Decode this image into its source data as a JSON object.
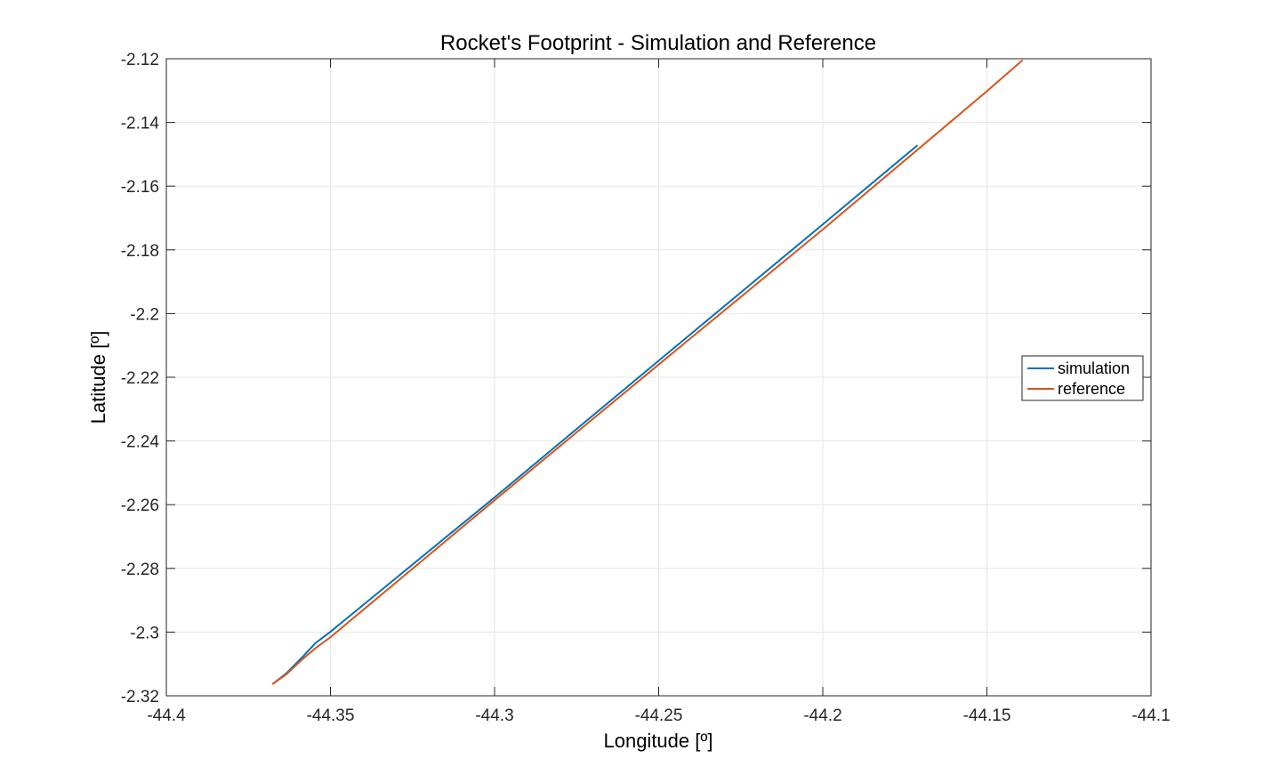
{
  "chart_data": {
    "type": "line",
    "title": "Rocket's Footprint - Simulation and Reference",
    "xlabel": "Longitude [º]",
    "ylabel": "Latitude [º]",
    "xlim": [
      -44.4,
      -44.1
    ],
    "ylim": [
      -2.32,
      -2.12
    ],
    "xticks": [
      -44.4,
      -44.35,
      -44.3,
      -44.25,
      -44.2,
      -44.15,
      -44.1
    ],
    "xtick_labels": [
      "-44.4",
      "-44.35",
      "-44.3",
      "-44.25",
      "-44.2",
      "-44.15",
      "-44.1"
    ],
    "yticks": [
      -2.12,
      -2.14,
      -2.16,
      -2.18,
      -2.2,
      -2.22,
      -2.24,
      -2.26,
      -2.28,
      -2.3,
      -2.32
    ],
    "ytick_labels": [
      "-2.12",
      "-2.14",
      "-2.16",
      "-2.18",
      "-2.2",
      "-2.22",
      "-2.24",
      "-2.26",
      "-2.28",
      "-2.3",
      "-2.32"
    ],
    "grid": true,
    "legend_position": "right",
    "series": [
      {
        "name": "simulation",
        "color": "#0072BD",
        "x": [
          -44.3675,
          -44.3635,
          -44.3585,
          -44.3545,
          -44.35,
          -44.3,
          -44.25,
          -44.2,
          -44.1713
        ],
        "y": [
          -2.3162,
          -2.313,
          -2.3078,
          -2.3034,
          -2.2999,
          -2.2577,
          -2.2148,
          -2.172,
          -2.1473
        ]
      },
      {
        "name": "reference",
        "color": "#D95319",
        "x": [
          -44.3675,
          -44.3635,
          -44.3585,
          -44.3545,
          -44.35,
          -44.3,
          -44.25,
          -44.2,
          -44.15,
          -44.1393
        ],
        "y": [
          -2.3162,
          -2.3133,
          -2.3085,
          -2.305,
          -2.3016,
          -2.2586,
          -2.216,
          -2.1736,
          -2.1302,
          -2.1206
        ]
      }
    ]
  }
}
